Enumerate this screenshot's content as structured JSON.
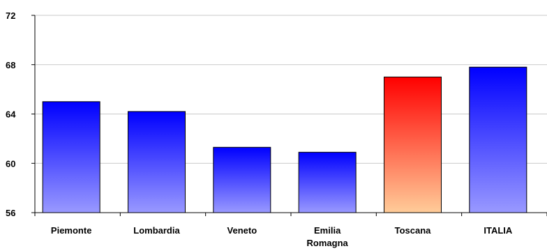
{
  "chart_data": {
    "type": "bar",
    "categories": [
      "Piemonte",
      "Lombardia",
      "Veneto",
      "Emilia Romagna",
      "Toscana",
      "ITALIA"
    ],
    "category_lines": [
      [
        "Piemonte"
      ],
      [
        "Lombardia"
      ],
      [
        "Veneto"
      ],
      [
        "Emilia",
        "Romagna"
      ],
      [
        "Toscana"
      ],
      [
        "ITALIA"
      ]
    ],
    "values": [
      65.0,
      64.2,
      61.3,
      60.9,
      67.0,
      67.8
    ],
    "ylim": [
      56,
      72
    ],
    "yticks": [
      "56",
      "60",
      "64",
      "68",
      "72"
    ],
    "xlabel": "",
    "ylabel": "",
    "title": "",
    "grid": true,
    "highlight_category": "Toscana",
    "colors": {
      "bar_top": "#0000ff",
      "bar_bottom": "#9999ff",
      "highlight_top": "#ff0000",
      "highlight_bottom": "#ffcc99",
      "grid": "#c8c8c8",
      "axis": "#000000"
    }
  }
}
